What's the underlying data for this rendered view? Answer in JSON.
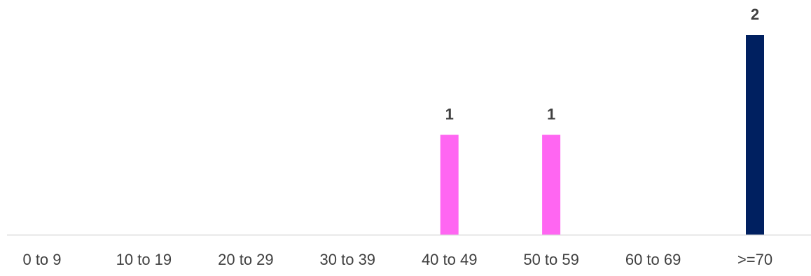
{
  "chart_data": {
    "type": "bar",
    "categories": [
      "0 to 9",
      "10 to 19",
      "20 to 29",
      "30 to 39",
      "40 to 49",
      "50 to 59",
      "60 to 69",
      ">=70"
    ],
    "values": [
      0,
      0,
      0,
      0,
      1,
      1,
      0,
      2
    ],
    "data_labels": [
      "",
      "",
      "",
      "",
      "1",
      "1",
      "",
      "2"
    ],
    "bar_colors": [
      "#ff66f2",
      "#ff66f2",
      "#ff66f2",
      "#ff66f2",
      "#ff66f2",
      "#ff66f2",
      "#ff66f2",
      "#002060"
    ],
    "axis_color": "#d9d9d9",
    "label_color": "#404040",
    "title": "",
    "xlabel": "",
    "ylabel": "",
    "ylim": [
      0,
      2
    ],
    "grid": false,
    "legend": "none"
  }
}
